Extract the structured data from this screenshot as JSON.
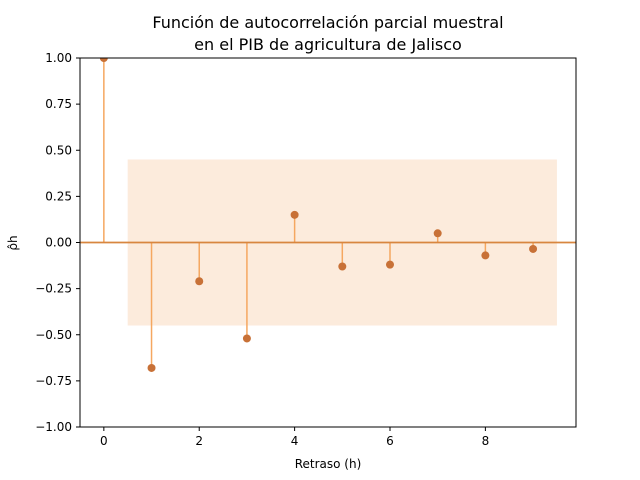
{
  "chart_data": {
    "type": "scatter",
    "title_lines": [
      "Función de autocorrelación parcial muestral",
      "en el PIB de agricultura de Jalisco"
    ],
    "xlabel": "Retraso (h)",
    "ylabel": "ρ̂h",
    "x": [
      0,
      1,
      2,
      3,
      4,
      5,
      6,
      7,
      8,
      9
    ],
    "values": [
      1.0,
      -0.68,
      -0.21,
      -0.52,
      0.15,
      -0.13,
      -0.12,
      0.05,
      -0.07,
      -0.035
    ],
    "xlim": [
      -0.5,
      9.9
    ],
    "ylim": [
      -1.0,
      1.0
    ],
    "xticks": [
      0,
      2,
      4,
      6,
      8
    ],
    "xtick_labels": [
      "0",
      "2",
      "4",
      "6",
      "8"
    ],
    "yticks": [
      1.0,
      0.75,
      0.5,
      0.25,
      0.0,
      -0.25,
      -0.5,
      -0.75,
      -1.0
    ],
    "ytick_labels": [
      "1.00",
      "0.75",
      "0.50",
      "0.25",
      "0.00",
      "−0.25",
      "−0.50",
      "−0.75",
      "−1.00"
    ],
    "confidence_band": {
      "x_start": 0.5,
      "x_end": 9.5,
      "lower": -0.45,
      "upper": 0.45
    },
    "zero_line": 0,
    "grid": false,
    "colors": {
      "marker": "#c87137",
      "stem": "#f5a760",
      "band": "#fcebdc",
      "zero_line": "#d8863f"
    }
  }
}
